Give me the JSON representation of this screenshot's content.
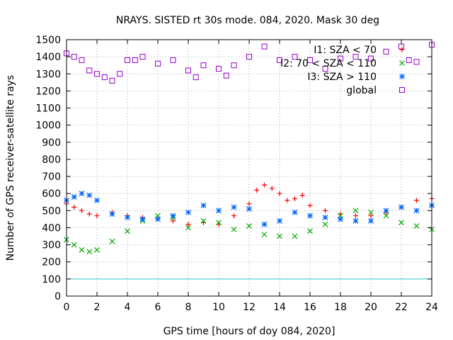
{
  "chart_data": {
    "type": "scatter",
    "title": "NRAYS. SISTED rt 30s mode. 084, 2020. Mask 30 deg",
    "xlabel": "GPS time [hours of doy 084, 2020]",
    "ylabel": "Number of GPS receiver-satellite rays",
    "xlim": [
      0,
      24
    ],
    "ylim": [
      0,
      1500
    ],
    "xticks": [
      "0",
      "2",
      "4",
      "6",
      "8",
      "10",
      "12",
      "14",
      "16",
      "18",
      "20",
      "22",
      "24"
    ],
    "yticks": [
      "0",
      "100",
      "200",
      "300",
      "400",
      "500",
      "600",
      "700",
      "800",
      "900",
      "1000",
      "1100",
      "1200",
      "1300",
      "1400",
      "1500"
    ],
    "grid": true,
    "legend_position": "top-right",
    "reference_line": {
      "y": 100,
      "color": "#33cccc"
    },
    "series": [
      {
        "name": "I1: SZA < 70",
        "marker": "plus",
        "color": "#ff0000",
        "x": [
          0,
          0.5,
          1,
          1.5,
          2,
          3,
          4,
          5,
          6,
          7,
          8,
          9,
          10,
          11,
          12,
          12.5,
          13,
          13.5,
          14,
          14.5,
          15,
          15.5,
          16,
          17,
          18,
          19,
          20,
          21,
          22,
          23,
          24
        ],
        "y": [
          540,
          520,
          500,
          480,
          470,
          490,
          470,
          460,
          450,
          440,
          420,
          430,
          420,
          470,
          540,
          620,
          650,
          630,
          600,
          560,
          570,
          590,
          530,
          500,
          480,
          470,
          470,
          490,
          520,
          560,
          570
        ]
      },
      {
        "name": "I2: 70 < SZA < 110",
        "marker": "x",
        "color": "#00aa00",
        "x": [
          0,
          0.5,
          1,
          1.5,
          2,
          3,
          4,
          5,
          6,
          7,
          8,
          9,
          10,
          11,
          12,
          13,
          14,
          15,
          16,
          17,
          18,
          19,
          20,
          21,
          22,
          23,
          24
        ],
        "y": [
          330,
          300,
          270,
          260,
          270,
          320,
          380,
          440,
          470,
          460,
          400,
          440,
          430,
          390,
          410,
          360,
          350,
          350,
          380,
          420,
          470,
          500,
          490,
          470,
          430,
          410,
          390
        ]
      },
      {
        "name": "I3: SZA > 110",
        "marker": "star",
        "color": "#0066ff",
        "x": [
          0,
          0.5,
          1,
          1.5,
          2,
          3,
          4,
          5,
          6,
          7,
          8,
          9,
          10,
          11,
          12,
          13,
          14,
          15,
          16,
          17,
          18,
          19,
          20,
          21,
          22,
          23,
          24
        ],
        "y": [
          560,
          580,
          600,
          590,
          560,
          480,
          460,
          450,
          450,
          470,
          490,
          530,
          500,
          520,
          510,
          420,
          440,
          490,
          470,
          460,
          450,
          440,
          440,
          500,
          520,
          500,
          530
        ]
      },
      {
        "name": "global",
        "marker": "square",
        "color": "#9900cc",
        "x": [
          0,
          0.5,
          1,
          1.5,
          2,
          2.5,
          3,
          3.5,
          4,
          4.5,
          5,
          6,
          7,
          8,
          8.5,
          9,
          10,
          10.5,
          11,
          12,
          13,
          14,
          15,
          16,
          17,
          18,
          19,
          20,
          21,
          22,
          22.5,
          23,
          24
        ],
        "y": [
          1420,
          1400,
          1380,
          1320,
          1300,
          1280,
          1260,
          1300,
          1380,
          1380,
          1400,
          1360,
          1380,
          1320,
          1280,
          1350,
          1330,
          1290,
          1350,
          1400,
          1460,
          1380,
          1400,
          1380,
          1330,
          1390,
          1400,
          1390,
          1430,
          1460,
          1380,
          1370,
          1470
        ]
      }
    ]
  }
}
